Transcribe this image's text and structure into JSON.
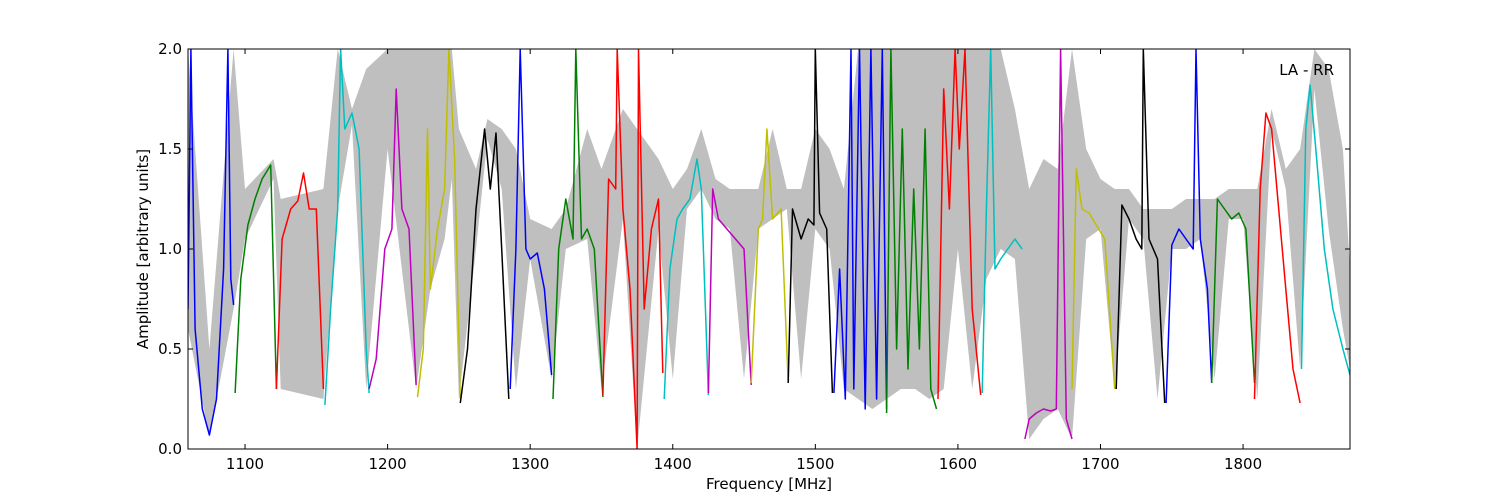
{
  "chart_data": {
    "type": "line",
    "title": "",
    "xlabel": "Frequency [MHz]",
    "ylabel": "Amplitude [arbitrary units]",
    "annotation": "LA - RR",
    "xlim": [
      1060,
      1875
    ],
    "ylim": [
      0.0,
      2.0
    ],
    "x_ticks": [
      1100,
      1200,
      1300,
      1400,
      1500,
      1600,
      1700,
      1800
    ],
    "y_ticks": [
      0.0,
      0.5,
      1.0,
      1.5,
      2.0
    ],
    "x_tick_labels": [
      "1100",
      "1200",
      "1300",
      "1400",
      "1500",
      "1600",
      "1700",
      "1800"
    ],
    "y_tick_labels": [
      "0.0",
      "0.5",
      "1.0",
      "1.5",
      "2.0"
    ],
    "grid": false,
    "colors": {
      "background_band": "#bfbfbf",
      "blue": "#0000ff",
      "green": "#008000",
      "red": "#ff0000",
      "cyan": "#00bfbf",
      "magenta": "#bf00bf",
      "yellow": "#bfbf00",
      "black": "#000000"
    },
    "band": {
      "x": [
        1060,
        1075,
        1092,
        1100,
        1120,
        1125,
        1155,
        1165,
        1175,
        1185,
        1200,
        1220,
        1230,
        1240,
        1245,
        1250,
        1262,
        1270,
        1280,
        1290,
        1300,
        1315,
        1325,
        1340,
        1350,
        1365,
        1375,
        1390,
        1400,
        1410,
        1420,
        1430,
        1440,
        1450,
        1460,
        1470,
        1480,
        1490,
        1500,
        1510,
        1520,
        1530,
        1540,
        1550,
        1560,
        1570,
        1580,
        1590,
        1600,
        1610,
        1620,
        1630,
        1640,
        1650,
        1660,
        1670,
        1680,
        1690,
        1700,
        1710,
        1720,
        1730,
        1740,
        1750,
        1760,
        1770,
        1780,
        1790,
        1800,
        1810,
        1820,
        1830,
        1840,
        1850,
        1860,
        1870,
        1875
      ],
      "y_low": [
        0.6,
        0.06,
        0.7,
        1.05,
        1.35,
        0.3,
        0.25,
        1.2,
        1.62,
        0.3,
        1.5,
        0.3,
        0.8,
        1.05,
        1.35,
        0.25,
        1.0,
        1.55,
        1.3,
        0.3,
        0.95,
        0.35,
        1.0,
        1.05,
        0.3,
        1.15,
        0.0,
        1.1,
        0.35,
        1.2,
        1.3,
        1.15,
        1.1,
        0.35,
        1.1,
        1.15,
        1.2,
        0.35,
        1.1,
        1.0,
        0.3,
        0.25,
        0.2,
        0.25,
        0.3,
        0.3,
        0.25,
        0.3,
        1.0,
        0.3,
        0.85,
        1.0,
        0.95,
        0.05,
        0.15,
        0.2,
        0.05,
        1.05,
        1.1,
        0.3,
        1.15,
        1.05,
        0.25,
        1.0,
        1.0,
        1.05,
        0.35,
        1.15,
        1.15,
        0.25,
        1.6,
        1.3,
        0.4,
        1.8,
        1.1,
        0.6,
        0.4
      ],
      "y_high": [
        2.0,
        0.5,
        2.0,
        1.3,
        1.45,
        1.25,
        1.3,
        2.0,
        1.7,
        1.9,
        2.0,
        2.0,
        2.0,
        2.0,
        2.0,
        1.6,
        1.4,
        1.65,
        1.6,
        1.5,
        1.15,
        1.1,
        1.2,
        1.6,
        1.4,
        1.7,
        1.6,
        1.45,
        1.3,
        1.4,
        1.6,
        1.35,
        1.3,
        1.3,
        1.3,
        1.6,
        1.3,
        1.3,
        1.6,
        1.5,
        1.3,
        2.0,
        2.0,
        2.0,
        2.0,
        2.0,
        2.0,
        2.0,
        2.0,
        2.0,
        2.0,
        2.0,
        1.7,
        1.3,
        1.45,
        1.4,
        2.0,
        1.5,
        1.35,
        1.3,
        1.3,
        1.2,
        1.2,
        1.2,
        1.25,
        1.25,
        1.25,
        1.3,
        1.3,
        1.3,
        1.7,
        1.4,
        1.5,
        2.0,
        1.9,
        1.5,
        0.9
      ]
    },
    "series": [
      {
        "color": "blue",
        "x": [
          1060,
          1062,
          1065,
          1070,
          1075,
          1080,
          1085,
          1088,
          1090,
          1092
        ],
        "y": [
          0.7,
          2.0,
          0.6,
          0.2,
          0.07,
          0.25,
          0.9,
          2.0,
          0.85,
          0.72
        ]
      },
      {
        "color": "green",
        "x": [
          1093,
          1097,
          1102,
          1107,
          1112,
          1118,
          1122
        ],
        "y": [
          0.28,
          0.85,
          1.12,
          1.25,
          1.35,
          1.42,
          0.3
        ]
      },
      {
        "color": "red",
        "x": [
          1122,
          1126,
          1132,
          1137,
          1141,
          1145,
          1150,
          1155
        ],
        "y": [
          0.3,
          1.05,
          1.2,
          1.24,
          1.38,
          1.2,
          1.2,
          0.3
        ]
      },
      {
        "color": "cyan",
        "x": [
          1156,
          1160,
          1165,
          1167,
          1170,
          1175,
          1180,
          1185,
          1187
        ],
        "y": [
          0.22,
          0.7,
          1.2,
          2.0,
          1.6,
          1.68,
          1.5,
          0.5,
          0.28
        ]
      },
      {
        "color": "magenta",
        "x": [
          1187,
          1192,
          1198,
          1203,
          1206,
          1210,
          1215,
          1220
        ],
        "y": [
          0.3,
          0.45,
          1.0,
          1.1,
          1.8,
          1.2,
          1.1,
          0.32
        ]
      },
      {
        "color": "yellow",
        "x": [
          1221,
          1225,
          1228,
          1230,
          1235,
          1240,
          1243,
          1247,
          1251
        ],
        "y": [
          0.26,
          0.5,
          1.6,
          0.8,
          1.1,
          1.3,
          2.0,
          1.45,
          0.25
        ]
      },
      {
        "color": "black",
        "x": [
          1251,
          1256,
          1262,
          1268,
          1272,
          1276,
          1280,
          1285
        ],
        "y": [
          0.23,
          0.5,
          1.2,
          1.6,
          1.3,
          1.58,
          1.0,
          0.25
        ]
      },
      {
        "color": "blue",
        "x": [
          1286,
          1290,
          1293,
          1297,
          1300,
          1305,
          1310,
          1315
        ],
        "y": [
          0.3,
          1.0,
          2.0,
          1.0,
          0.95,
          0.98,
          0.8,
          0.37
        ]
      },
      {
        "color": "green",
        "x": [
          1316,
          1320,
          1325,
          1330,
          1332,
          1336,
          1340,
          1345,
          1351
        ],
        "y": [
          0.25,
          1.0,
          1.25,
          1.05,
          2.0,
          1.05,
          1.1,
          1.0,
          0.26
        ]
      },
      {
        "color": "red",
        "x": [
          1351,
          1355,
          1360,
          1361,
          1365,
          1370,
          1375,
          1376,
          1380,
          1385,
          1390,
          1393
        ],
        "y": [
          0.27,
          1.35,
          1.3,
          2.0,
          1.2,
          0.8,
          0.0,
          2.0,
          0.7,
          1.1,
          1.25,
          0.38
        ]
      },
      {
        "color": "cyan",
        "x": [
          1394,
          1398,
          1403,
          1407,
          1412,
          1417,
          1420,
          1425
        ],
        "y": [
          0.25,
          0.9,
          1.15,
          1.2,
          1.25,
          1.45,
          1.3,
          0.27
        ]
      },
      {
        "color": "magenta",
        "x": [
          1425,
          1428,
          1432,
          1438,
          1444,
          1450,
          1455
        ],
        "y": [
          0.28,
          1.3,
          1.15,
          1.1,
          1.05,
          1.0,
          0.32
        ]
      },
      {
        "color": "yellow",
        "x": [
          1455,
          1460,
          1463,
          1466,
          1470,
          1476,
          1481
        ],
        "y": [
          0.33,
          1.1,
          1.15,
          1.6,
          1.15,
          1.2,
          0.33
        ]
      },
      {
        "color": "black",
        "x": [
          1481,
          1484,
          1490,
          1495,
          1499,
          1500,
          1503,
          1508,
          1512
        ],
        "y": [
          0.33,
          1.2,
          1.05,
          1.15,
          1.12,
          2.0,
          1.18,
          1.1,
          0.28
        ]
      },
      {
        "color": "blue",
        "x": [
          1513,
          1517,
          1521,
          1525,
          1527,
          1531,
          1535,
          1539,
          1543,
          1547,
          1550
        ],
        "y": [
          0.28,
          0.9,
          0.25,
          2.0,
          0.3,
          2.0,
          0.2,
          2.0,
          0.25,
          2.0,
          0.2
        ]
      },
      {
        "color": "green",
        "x": [
          1550,
          1553,
          1557,
          1561,
          1565,
          1569,
          1573,
          1577,
          1581,
          1585
        ],
        "y": [
          0.18,
          2.0,
          0.5,
          1.6,
          0.4,
          1.3,
          0.5,
          1.6,
          0.3,
          0.2
        ]
      },
      {
        "color": "red",
        "x": [
          1586,
          1590,
          1594,
          1598,
          1601,
          1605,
          1610,
          1616
        ],
        "y": [
          0.25,
          1.8,
          1.2,
          2.0,
          1.5,
          2.0,
          0.7,
          0.27
        ]
      },
      {
        "color": "cyan",
        "x": [
          1617,
          1620,
          1623,
          1626,
          1630,
          1635,
          1640,
          1645
        ],
        "y": [
          0.28,
          1.2,
          2.0,
          0.9,
          0.95,
          1.0,
          1.05,
          1.0
        ]
      },
      {
        "color": "magenta",
        "x": [
          1647,
          1650,
          1655,
          1660,
          1665,
          1669,
          1672,
          1676,
          1680
        ],
        "y": [
          0.05,
          0.15,
          0.18,
          0.2,
          0.19,
          0.2,
          2.0,
          0.15,
          0.05
        ]
      },
      {
        "color": "yellow",
        "x": [
          1680,
          1683,
          1687,
          1692,
          1697,
          1703,
          1710
        ],
        "y": [
          0.3,
          1.4,
          1.2,
          1.18,
          1.12,
          1.05,
          0.3
        ]
      },
      {
        "color": "black",
        "x": [
          1711,
          1715,
          1720,
          1725,
          1729,
          1730,
          1734,
          1740,
          1745
        ],
        "y": [
          0.3,
          1.22,
          1.15,
          1.05,
          1.0,
          2.0,
          1.05,
          0.95,
          0.23
        ]
      },
      {
        "color": "blue",
        "x": [
          1746,
          1750,
          1755,
          1760,
          1765,
          1767,
          1770,
          1775,
          1778
        ],
        "y": [
          0.23,
          1.02,
          1.1,
          1.05,
          1.0,
          2.0,
          1.05,
          0.8,
          0.33
        ]
      },
      {
        "color": "green",
        "x": [
          1778,
          1782,
          1787,
          1792,
          1797,
          1802,
          1808
        ],
        "y": [
          0.33,
          1.25,
          1.2,
          1.15,
          1.18,
          1.1,
          0.33
        ]
      },
      {
        "color": "red",
        "x": [
          1808,
          1812,
          1816,
          1820,
          1825,
          1830,
          1835,
          1840
        ],
        "y": [
          0.25,
          1.3,
          1.68,
          1.6,
          1.2,
          0.8,
          0.4,
          0.23
        ]
      },
      {
        "color": "cyan",
        "x": [
          1841,
          1844,
          1847,
          1851,
          1857,
          1863,
          1870,
          1875
        ],
        "y": [
          0.4,
          1.6,
          1.82,
          1.5,
          1.0,
          0.7,
          0.5,
          0.37
        ]
      }
    ]
  }
}
